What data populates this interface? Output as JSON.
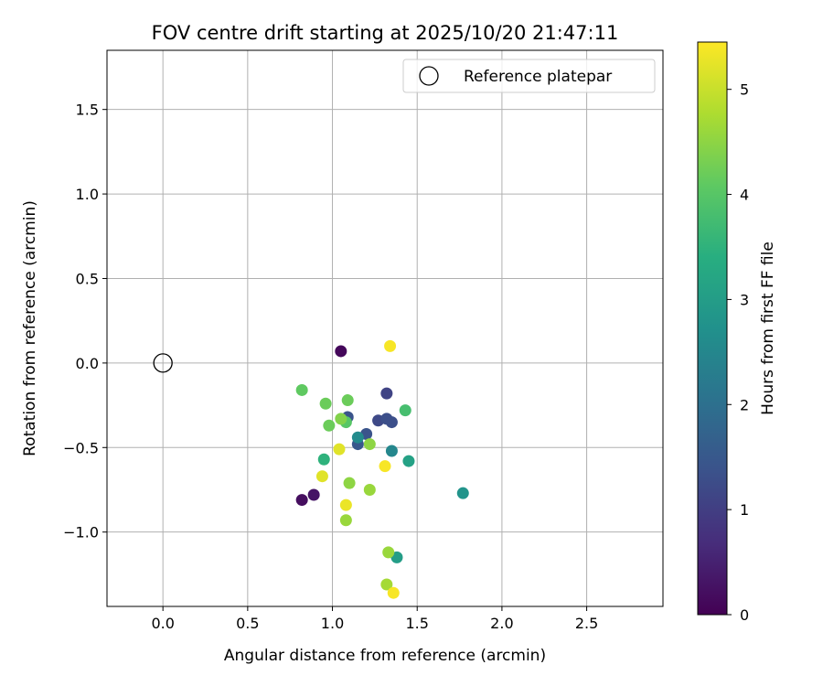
{
  "chart_data": {
    "type": "scatter",
    "title": "FOV centre drift starting at 2025/10/20 21:47:11",
    "xlabel": "Angular distance from reference (arcmin)",
    "ylabel": "Rotation from reference (arcmin)",
    "xlim": [
      -0.33,
      2.95
    ],
    "ylim": [
      -1.44,
      1.85
    ],
    "xticks": [
      0.0,
      0.5,
      1.0,
      1.5,
      2.0,
      2.5
    ],
    "xtick_labels": [
      "0.0",
      "0.5",
      "1.0",
      "1.5",
      "2.0",
      "2.5"
    ],
    "yticks": [
      -1.0,
      -0.5,
      0.0,
      0.5,
      1.0,
      1.5
    ],
    "ytick_labels": [
      "−1.0",
      "−0.5",
      "0.0",
      "0.5",
      "1.0",
      "1.5"
    ],
    "grid": true,
    "legend": {
      "position": "top-right",
      "label": "Reference platepar"
    },
    "reference_point": {
      "x": 0.0,
      "y": 0.0
    },
    "colorbar": {
      "label": "Hours from first FF file",
      "colormap": "viridis",
      "range": [
        0,
        5.45
      ],
      "ticks": [
        0,
        1,
        2,
        3,
        4,
        5
      ],
      "tick_labels": [
        "0",
        "1",
        "2",
        "3",
        "4",
        "5"
      ]
    },
    "points": [
      {
        "x": 1.05,
        "y": 0.07,
        "hours": 0.1
      },
      {
        "x": 0.82,
        "y": -0.81,
        "hours": 0.2
      },
      {
        "x": 0.89,
        "y": -0.78,
        "hours": 0.3
      },
      {
        "x": 1.32,
        "y": -0.18,
        "hours": 1.1
      },
      {
        "x": 1.27,
        "y": -0.34,
        "hours": 1.2
      },
      {
        "x": 1.32,
        "y": -0.33,
        "hours": 1.3
      },
      {
        "x": 1.35,
        "y": -0.35,
        "hours": 1.3
      },
      {
        "x": 1.09,
        "y": -0.32,
        "hours": 1.4
      },
      {
        "x": 1.2,
        "y": -0.42,
        "hours": 1.4
      },
      {
        "x": 1.15,
        "y": -0.48,
        "hours": 1.5
      },
      {
        "x": 1.35,
        "y": -0.52,
        "hours": 2.5
      },
      {
        "x": 1.15,
        "y": -0.44,
        "hours": 2.6
      },
      {
        "x": 1.77,
        "y": -0.77,
        "hours": 2.8
      },
      {
        "x": 1.38,
        "y": -1.15,
        "hours": 3.0
      },
      {
        "x": 1.45,
        "y": -0.58,
        "hours": 3.1
      },
      {
        "x": 0.95,
        "y": -0.57,
        "hours": 3.5
      },
      {
        "x": 1.43,
        "y": -0.28,
        "hours": 3.8
      },
      {
        "x": 1.08,
        "y": -0.35,
        "hours": 4.0
      },
      {
        "x": 0.82,
        "y": -0.16,
        "hours": 4.1
      },
      {
        "x": 0.96,
        "y": -0.24,
        "hours": 4.2
      },
      {
        "x": 1.09,
        "y": -0.22,
        "hours": 4.2
      },
      {
        "x": 0.98,
        "y": -0.37,
        "hours": 4.2
      },
      {
        "x": 1.05,
        "y": -0.33,
        "hours": 4.4
      },
      {
        "x": 1.22,
        "y": -0.48,
        "hours": 4.5
      },
      {
        "x": 1.1,
        "y": -0.71,
        "hours": 4.5
      },
      {
        "x": 1.22,
        "y": -0.75,
        "hours": 4.6
      },
      {
        "x": 1.08,
        "y": -0.93,
        "hours": 4.6
      },
      {
        "x": 1.33,
        "y": -1.12,
        "hours": 4.6
      },
      {
        "x": 1.32,
        "y": -1.31,
        "hours": 4.7
      },
      {
        "x": 1.04,
        "y": -0.51,
        "hours": 5.2
      },
      {
        "x": 0.94,
        "y": -0.67,
        "hours": 5.2
      },
      {
        "x": 1.08,
        "y": -0.84,
        "hours": 5.3
      },
      {
        "x": 1.31,
        "y": -0.61,
        "hours": 5.4
      },
      {
        "x": 1.34,
        "y": 0.1,
        "hours": 5.4
      },
      {
        "x": 1.36,
        "y": -1.36,
        "hours": 5.4
      }
    ]
  }
}
